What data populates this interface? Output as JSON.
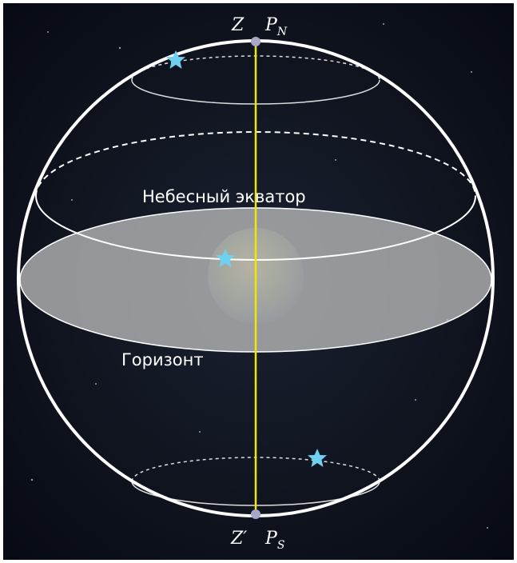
{
  "labels": {
    "zenith": "Z",
    "north_pole": {
      "base": "P",
      "sub": "N"
    },
    "equator": "Небесный экватор",
    "horizon": "Горизонт",
    "nadir": "Z′",
    "south_pole": {
      "base": "P",
      "sub": "S"
    }
  }
}
